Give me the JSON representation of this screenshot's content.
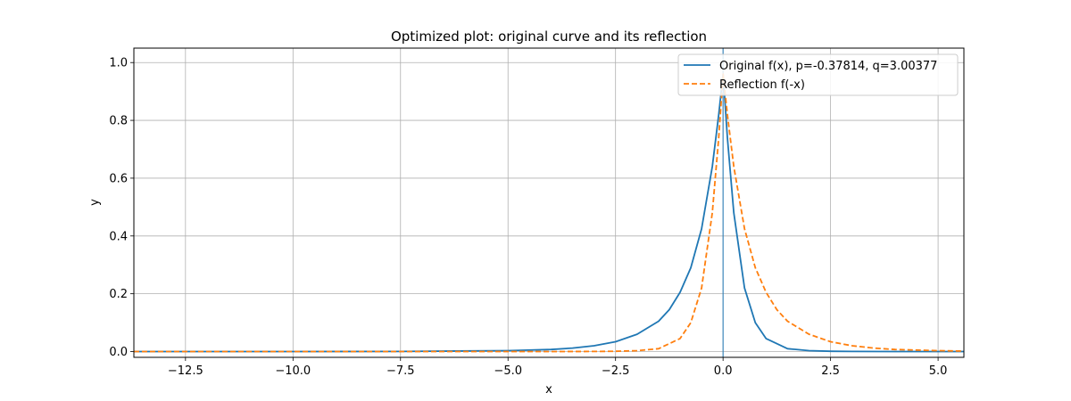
{
  "chart_data": {
    "type": "line",
    "title": "Optimized plot: original curve and its reflection",
    "xlabel": "x",
    "ylabel": "y",
    "xlim": [
      -13.7,
      5.6
    ],
    "ylim": [
      -0.02,
      1.05
    ],
    "x_ticks": [
      -12.5,
      -10.0,
      -7.5,
      -5.0,
      -2.5,
      0.0,
      2.5,
      5.0
    ],
    "x_tick_labels": [
      "−12.5",
      "−10.0",
      "−7.5",
      "−5.0",
      "−2.5",
      "0.0",
      "2.5",
      "5.0"
    ],
    "y_ticks": [
      0.0,
      0.2,
      0.4,
      0.6,
      0.8,
      1.0
    ],
    "y_tick_labels": [
      "0.0",
      "0.2",
      "0.4",
      "0.6",
      "0.8",
      "1.0"
    ],
    "grid": true,
    "vertical_line_x": 0.0,
    "legend_position": "top-right",
    "series": [
      {
        "name": "Original f(x), p=-0.37814, q=3.00377",
        "color": "#1f77b4",
        "style": "solid",
        "x": [
          -13.7,
          -10.0,
          -7.5,
          -5.0,
          -4.0,
          -3.5,
          -3.0,
          -2.5,
          -2.0,
          -1.5,
          -1.25,
          -1.0,
          -0.75,
          -0.5,
          -0.25,
          -0.1,
          0.0,
          0.1,
          0.25,
          0.5,
          0.75,
          1.0,
          1.5,
          2.0,
          2.5,
          3.0,
          4.0,
          5.6
        ],
        "y": [
          0.0,
          0.0,
          0.0005,
          0.003,
          0.007,
          0.012,
          0.02,
          0.034,
          0.06,
          0.105,
          0.145,
          0.205,
          0.29,
          0.425,
          0.64,
          0.82,
          0.96,
          0.74,
          0.48,
          0.22,
          0.1,
          0.045,
          0.01,
          0.003,
          0.001,
          0.0003,
          0.0,
          0.0
        ]
      },
      {
        "name": "Reflection f(-x)",
        "color": "#ff7f0e",
        "style": "dashed",
        "x": [
          -13.7,
          -5.6,
          -4.0,
          -3.0,
          -2.5,
          -2.0,
          -1.5,
          -1.0,
          -0.75,
          -0.5,
          -0.25,
          -0.1,
          0.0,
          0.1,
          0.25,
          0.5,
          0.75,
          1.0,
          1.25,
          1.5,
          2.0,
          2.5,
          3.0,
          3.5,
          4.0,
          5.0,
          5.6
        ],
        "y": [
          0.0,
          0.0,
          0.0,
          0.0003,
          0.001,
          0.003,
          0.01,
          0.045,
          0.1,
          0.22,
          0.48,
          0.74,
          0.96,
          0.82,
          0.64,
          0.425,
          0.29,
          0.205,
          0.145,
          0.105,
          0.06,
          0.034,
          0.02,
          0.012,
          0.007,
          0.003,
          0.0015
        ]
      }
    ]
  }
}
